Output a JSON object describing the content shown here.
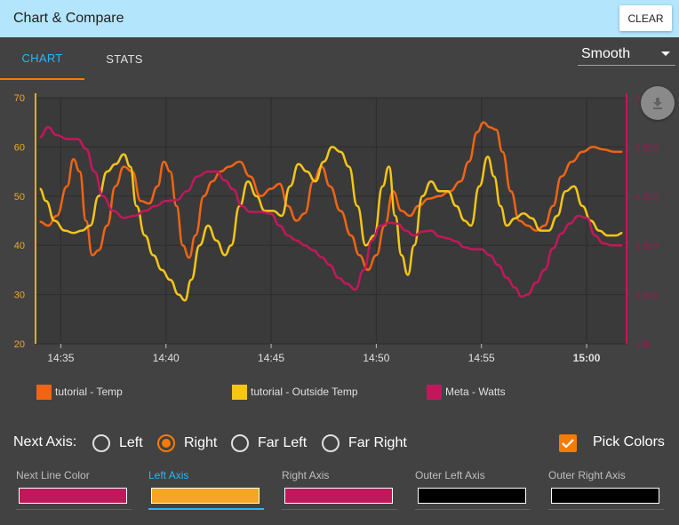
{
  "header": {
    "title": "Chart & Compare",
    "clear_label": "CLEAR"
  },
  "tabs": [
    {
      "label": "CHART",
      "active": true
    },
    {
      "label": "STATS",
      "active": false
    }
  ],
  "smoothing": {
    "selected": "Smooth"
  },
  "download": {
    "icon": "download-icon"
  },
  "chart_data": {
    "type": "line",
    "x_ticks": [
      "14:35",
      "14:40",
      "14:45",
      "14:50",
      "14:55",
      "15:00"
    ],
    "x_tick_bold": "15:00",
    "left_axis": {
      "ticks": [
        "70",
        "60",
        "50",
        "40",
        "30",
        "20"
      ],
      "range": [
        20,
        70
      ],
      "color": "#f5a623"
    },
    "right_axis": {
      "ticks": [
        "3,000",
        "2,500",
        "2,000",
        "1,500",
        "1,000",
        "500"
      ],
      "range": [
        500,
        3000
      ],
      "color": "#c2185b"
    },
    "grid": true,
    "x_range_minutes": [
      -1.2,
      16.5
    ],
    "series": [
      {
        "name": "tutorial - Temp",
        "color": "#f06414",
        "axis": "left",
        "points": [
          [
            -1.0,
            44.8
          ],
          [
            -0.6,
            44.0
          ],
          [
            -0.2,
            46.0
          ],
          [
            0.3,
            52.0
          ],
          [
            0.6,
            57.5
          ],
          [
            0.9,
            55.0
          ],
          [
            1.2,
            45.0
          ],
          [
            1.5,
            38.0
          ],
          [
            1.8,
            39.0
          ],
          [
            2.2,
            44.0
          ],
          [
            2.6,
            52.0
          ],
          [
            3.0,
            56.0
          ],
          [
            3.4,
            55.0
          ],
          [
            3.8,
            49.0
          ],
          [
            4.2,
            48.5
          ],
          [
            4.6,
            52.0
          ],
          [
            4.9,
            57.0
          ],
          [
            5.2,
            55.0
          ],
          [
            5.5,
            48.0
          ],
          [
            5.8,
            40.0
          ],
          [
            6.1,
            37.5
          ],
          [
            6.4,
            42.0
          ],
          [
            6.8,
            50.0
          ],
          [
            7.2,
            53.0
          ],
          [
            7.6,
            55.0
          ],
          [
            8.0,
            56.0
          ],
          [
            8.5,
            57.0
          ],
          [
            9.0,
            54.0
          ],
          [
            9.5,
            50.0
          ],
          [
            10.0,
            51.5
          ],
          [
            10.4,
            52.5
          ],
          [
            10.8,
            48.0
          ],
          [
            11.2,
            45.0
          ],
          [
            11.6,
            46.5
          ],
          [
            12.0,
            53.0
          ],
          [
            12.4,
            56.0
          ],
          [
            12.8,
            52.0
          ],
          [
            13.3,
            47.0
          ],
          [
            13.8,
            42.0
          ],
          [
            14.2,
            38.0
          ],
          [
            14.6,
            35.0
          ],
          [
            15.0,
            38.0
          ],
          [
            15.4,
            44.0
          ],
          [
            15.8,
            51.0
          ],
          [
            16.2,
            47.0
          ],
          [
            16.6,
            46.0
          ],
          [
            17.0,
            48.0
          ],
          [
            17.5,
            49.5
          ],
          [
            18.0,
            50.0
          ],
          [
            18.5,
            51.0
          ],
          [
            19.0,
            53.0
          ],
          [
            19.4,
            57.0
          ],
          [
            19.8,
            63.0
          ],
          [
            20.1,
            65.0
          ],
          [
            20.4,
            64.0
          ],
          [
            20.7,
            63.5
          ],
          [
            21.0,
            59.0
          ],
          [
            21.4,
            51.0
          ],
          [
            21.8,
            45.0
          ],
          [
            22.2,
            44.0
          ],
          [
            22.6,
            43.0
          ],
          [
            23.0,
            44.0
          ],
          [
            23.4,
            48.0
          ],
          [
            23.8,
            54.0
          ],
          [
            24.3,
            57.0
          ],
          [
            24.8,
            59.0
          ],
          [
            25.3,
            60.0
          ],
          [
            25.8,
            59.5
          ],
          [
            26.3,
            59.0
          ],
          [
            26.7,
            59.0
          ]
        ]
      },
      {
        "name": "tutorial - Outside Temp",
        "color": "#f5c518",
        "axis": "left",
        "points": [
          [
            -1.0,
            51.5
          ],
          [
            -0.7,
            49.0
          ],
          [
            -0.3,
            45.0
          ],
          [
            0.2,
            43.0
          ],
          [
            0.6,
            42.5
          ],
          [
            1.0,
            43.0
          ],
          [
            1.4,
            44.0
          ],
          [
            1.8,
            50.0
          ],
          [
            2.2,
            55.0
          ],
          [
            2.6,
            56.5
          ],
          [
            3.0,
            58.5
          ],
          [
            3.3,
            56.0
          ],
          [
            3.6,
            48.0
          ],
          [
            4.0,
            42.0
          ],
          [
            4.4,
            38.0
          ],
          [
            4.8,
            35.0
          ],
          [
            5.2,
            33.0
          ],
          [
            5.6,
            30.0
          ],
          [
            5.9,
            28.8
          ],
          [
            6.2,
            33.0
          ],
          [
            6.6,
            40.0
          ],
          [
            7.0,
            44.0
          ],
          [
            7.4,
            41.0
          ],
          [
            7.8,
            38.0
          ],
          [
            8.1,
            40.0
          ],
          [
            8.5,
            48.0
          ],
          [
            8.9,
            53.0
          ],
          [
            9.3,
            50.0
          ],
          [
            9.7,
            47.0
          ],
          [
            10.1,
            47.0
          ],
          [
            10.5,
            46.0
          ],
          [
            10.9,
            52.0
          ],
          [
            11.3,
            56.5
          ],
          [
            11.7,
            55.0
          ],
          [
            12.1,
            53.0
          ],
          [
            12.5,
            57.0
          ],
          [
            12.9,
            60.0
          ],
          [
            13.3,
            59.0
          ],
          [
            13.7,
            56.0
          ],
          [
            14.1,
            48.0
          ],
          [
            14.5,
            40.0
          ],
          [
            14.9,
            42.0
          ],
          [
            15.3,
            52.0
          ],
          [
            15.6,
            56.0
          ],
          [
            15.9,
            46.0
          ],
          [
            16.2,
            38.0
          ],
          [
            16.5,
            34.0
          ],
          [
            16.8,
            40.0
          ],
          [
            17.2,
            50.0
          ],
          [
            17.6,
            53.0
          ],
          [
            18.0,
            51.0
          ],
          [
            18.4,
            51.0
          ],
          [
            18.8,
            48.0
          ],
          [
            19.2,
            45.0
          ],
          [
            19.5,
            44.0
          ],
          [
            19.9,
            52.0
          ],
          [
            20.3,
            58.0
          ],
          [
            20.6,
            54.0
          ],
          [
            20.9,
            48.0
          ],
          [
            21.2,
            44.0
          ],
          [
            21.6,
            45.5
          ],
          [
            22.0,
            46.5
          ],
          [
            22.4,
            45.5
          ],
          [
            22.8,
            43.0
          ],
          [
            23.2,
            43.0
          ],
          [
            23.6,
            46.0
          ],
          [
            24.0,
            51.0
          ],
          [
            24.4,
            52.0
          ],
          [
            24.8,
            48.0
          ],
          [
            25.2,
            45.0
          ],
          [
            25.6,
            43.0
          ],
          [
            26.0,
            42.0
          ],
          [
            26.4,
            42.0
          ],
          [
            26.7,
            42.5
          ]
        ]
      },
      {
        "name": "Meta - Watts",
        "color": "#c2185b",
        "axis": "right",
        "points": [
          [
            -1.0,
            2600
          ],
          [
            -0.6,
            2700
          ],
          [
            -0.2,
            2620
          ],
          [
            0.3,
            2580
          ],
          [
            0.8,
            2580
          ],
          [
            1.2,
            2480
          ],
          [
            1.6,
            2250
          ],
          [
            2.0,
            2000
          ],
          [
            2.5,
            1850
          ],
          [
            3.0,
            1780
          ],
          [
            3.5,
            1800
          ],
          [
            4.0,
            1850
          ],
          [
            4.5,
            1900
          ],
          [
            5.0,
            1950
          ],
          [
            5.5,
            1960
          ],
          [
            6.0,
            2050
          ],
          [
            6.5,
            2200
          ],
          [
            7.0,
            2250
          ],
          [
            7.4,
            2250
          ],
          [
            7.8,
            2160
          ],
          [
            8.2,
            2070
          ],
          [
            8.6,
            1900
          ],
          [
            9.0,
            1840
          ],
          [
            9.5,
            1840
          ],
          [
            10.0,
            1820
          ],
          [
            10.4,
            1700
          ],
          [
            10.8,
            1600
          ],
          [
            11.2,
            1550
          ],
          [
            11.6,
            1500
          ],
          [
            12.0,
            1450
          ],
          [
            12.4,
            1380
          ],
          [
            12.8,
            1300
          ],
          [
            13.2,
            1170
          ],
          [
            13.6,
            1110
          ],
          [
            14.0,
            1050
          ],
          [
            14.4,
            1250
          ],
          [
            14.8,
            1550
          ],
          [
            15.2,
            1700
          ],
          [
            15.6,
            1730
          ],
          [
            16.0,
            1720
          ],
          [
            16.4,
            1650
          ],
          [
            16.8,
            1600
          ],
          [
            17.2,
            1640
          ],
          [
            17.6,
            1650
          ],
          [
            18.0,
            1590
          ],
          [
            18.4,
            1570
          ],
          [
            18.8,
            1540
          ],
          [
            19.2,
            1480
          ],
          [
            19.6,
            1460
          ],
          [
            20.0,
            1460
          ],
          [
            20.4,
            1400
          ],
          [
            20.8,
            1300
          ],
          [
            21.2,
            1170
          ],
          [
            21.6,
            1070
          ],
          [
            21.9,
            980
          ],
          [
            22.2,
            1000
          ],
          [
            22.6,
            1120
          ],
          [
            23.0,
            1250
          ],
          [
            23.4,
            1470
          ],
          [
            23.8,
            1620
          ],
          [
            24.2,
            1720
          ],
          [
            24.6,
            1800
          ],
          [
            25.0,
            1780
          ],
          [
            25.4,
            1600
          ],
          [
            25.8,
            1520
          ],
          [
            26.2,
            1500
          ],
          [
            26.7,
            1500
          ]
        ]
      }
    ]
  },
  "legend": [
    {
      "label": "tutorial - Temp",
      "color": "#f06414"
    },
    {
      "label": "tutorial - Outside Temp",
      "color": "#f5c518"
    },
    {
      "label": "Meta - Watts",
      "color": "#c2185b"
    }
  ],
  "next_axis": {
    "label": "Next Axis:",
    "options": [
      {
        "label": "Left",
        "checked": false
      },
      {
        "label": "Right",
        "checked": true
      },
      {
        "label": "Far Left",
        "checked": false
      },
      {
        "label": "Far Right",
        "checked": false
      }
    ]
  },
  "pick_colors": {
    "label": "Pick Colors",
    "checked": true
  },
  "color_fields": [
    {
      "label": "Next Line Color",
      "color": "#c2185b",
      "active": false
    },
    {
      "label": "Left Axis",
      "color": "#f5a623",
      "active": true
    },
    {
      "label": "Right Axis",
      "color": "#c2185b",
      "active": false
    },
    {
      "label": "Outer Left Axis",
      "color": "#000000",
      "active": false
    },
    {
      "label": "Outer Right Axis",
      "color": "#000000",
      "active": false
    }
  ]
}
